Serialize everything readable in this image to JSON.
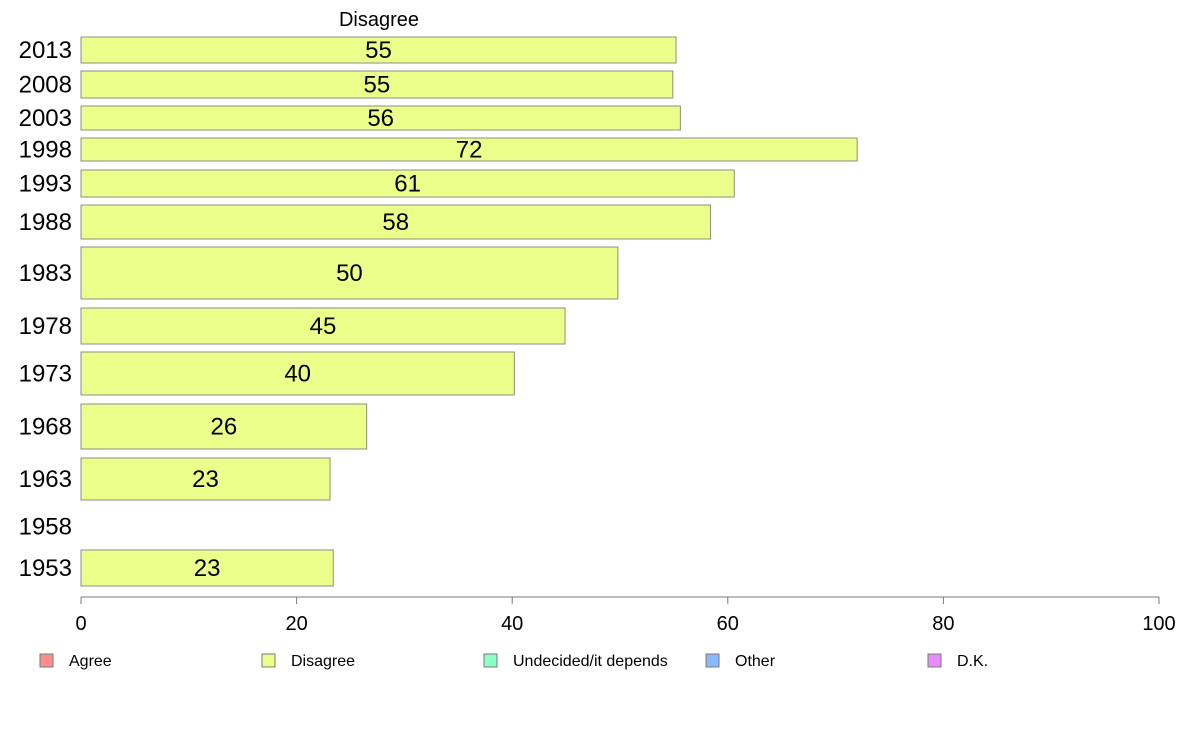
{
  "chart_data": {
    "type": "bar",
    "orientation": "horizontal",
    "panel_title": "Disagree",
    "categories": [
      "2013",
      "2008",
      "2003",
      "1998",
      "1993",
      "1988",
      "1983",
      "1978",
      "1973",
      "1968",
      "1963",
      "1958",
      "1953"
    ],
    "series": [
      {
        "name": "Disagree",
        "values": [
          55.2,
          54.9,
          55.6,
          72.0,
          60.6,
          58.4,
          49.8,
          44.9,
          40.2,
          26.5,
          23.1,
          null,
          23.4
        ],
        "labels": [
          "55",
          "55",
          "56",
          "72",
          "61",
          "58",
          "50",
          "45",
          "40",
          "26",
          "23",
          "",
          "23"
        ],
        "color": "#ebff8a"
      }
    ],
    "xlim": [
      0,
      100
    ],
    "xticks": [
      "0",
      "20",
      "40",
      "60",
      "80",
      "100"
    ],
    "xlabel": "",
    "ylabel": "",
    "grid": false,
    "legend_position": "bottom",
    "legend": [
      {
        "label": "Agree",
        "color": "#ff8c8c"
      },
      {
        "label": "Disagree",
        "color": "#ebff8a"
      },
      {
        "label": "Undecided/it depends",
        "color": "#8cffc4"
      },
      {
        "label": "Other",
        "color": "#8cb8ff"
      },
      {
        "label": "D.K.",
        "color": "#e68cff"
      }
    ]
  }
}
